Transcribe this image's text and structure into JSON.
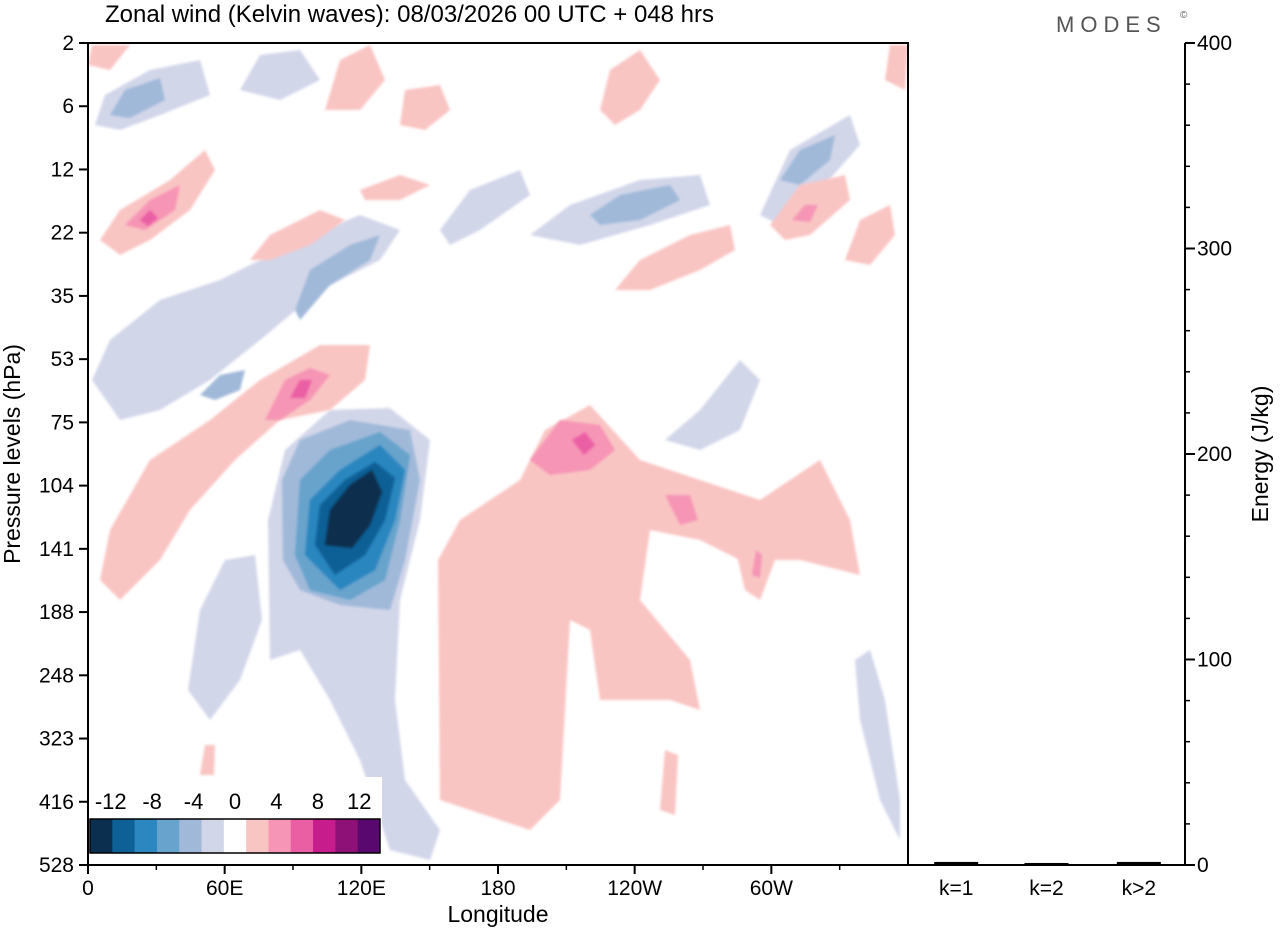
{
  "header": {
    "title": "Zonal wind (Kelvin waves):  08/03/2026  00 UTC  + 048 hrs",
    "logo": "MODES",
    "logo_mark": "©"
  },
  "chart_data": [
    {
      "type": "heatmap",
      "title": "Zonal wind (Kelvin waves):  08/03/2026  00 UTC  + 048 hrs",
      "xlabel": "Longitude",
      "ylabel": "Pressure levels (hPa)",
      "x_ticks": [
        "0",
        "60E",
        "120E",
        "180",
        "120W",
        "60W"
      ],
      "x_tick_degrees": [
        0,
        60,
        120,
        180,
        240,
        300
      ],
      "x_range_degrees": [
        0,
        360
      ],
      "y_ticks": [
        "2",
        "6",
        "12",
        "22",
        "35",
        "53",
        "75",
        "104",
        "141",
        "188",
        "248",
        "323",
        "416",
        "528"
      ],
      "y_reversed": true,
      "colorbar": {
        "labels": [
          "-12",
          "-8",
          "-4",
          "0",
          "4",
          "8",
          "12"
        ],
        "label_levels": [
          -12,
          -8,
          -4,
          0,
          4,
          8,
          12
        ],
        "levels": [
          -14,
          -12,
          -10,
          -8,
          -6,
          -4,
          -2,
          2,
          4,
          6,
          8,
          10,
          12,
          14
        ],
        "colors": [
          "#0b2f4e",
          "#0e6196",
          "#2c86bf",
          "#67a3cc",
          "#a0b9d9",
          "#d2d6e9",
          "#ffffff",
          "#f9c5c3",
          "#f695b5",
          "#ea5ea4",
          "#c61c8c",
          "#8e1177",
          "#58086e"
        ],
        "position": "bottom-left"
      },
      "features": [
        {
          "kind": "negative",
          "level": -13,
          "center": [
            108,
            135
          ],
          "note": "strongest easterly core near 120E"
        },
        {
          "kind": "negative",
          "level": -4,
          "center": [
            110,
            160
          ]
        },
        {
          "kind": "positive",
          "level": 6,
          "center": [
            225,
            90
          ]
        },
        {
          "kind": "positive",
          "level": 4,
          "center": [
            260,
            130
          ]
        }
      ]
    },
    {
      "type": "bar",
      "categories": [
        "k=1",
        "k=2",
        "k>2"
      ],
      "values": [
        1,
        0.5,
        1
      ],
      "ylabel": "Energy (J/kg)",
      "ylim": [
        0,
        400
      ],
      "y_ticks": [
        0,
        100,
        200,
        300,
        400
      ],
      "y_axis_side": "right"
    }
  ]
}
